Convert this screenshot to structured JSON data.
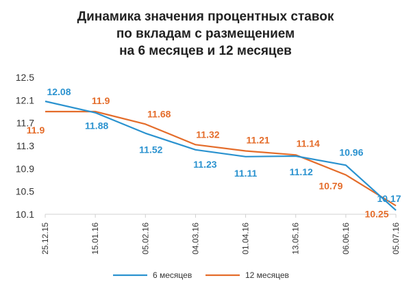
{
  "chart_data": {
    "type": "line",
    "title_lines": [
      "Динамика значения процентных ставок",
      "по вкладам с размещением",
      "на 6 месяцев и 12 месяцев"
    ],
    "categories": [
      "25.12.15",
      "15.01.16",
      "05.02.16",
      "04.03.16",
      "01.04.16",
      "13.05.16",
      "06.06.16",
      "05.07.16"
    ],
    "yticks": [
      "12.5",
      "12.1",
      "11.7",
      "11.3",
      "10.9",
      "10.5",
      "10.1"
    ],
    "ylim": [
      10.1,
      12.5
    ],
    "grid": false,
    "legend_position": "bottom",
    "series": [
      {
        "name": "6 месяцев",
        "color": "#2a92cf",
        "values": [
          12.08,
          11.88,
          11.52,
          11.23,
          11.11,
          11.12,
          10.96,
          10.17
        ],
        "labels": [
          "12.08",
          "11.88",
          "11.52",
          "11.23",
          "11.11",
          "11.12",
          "10.96",
          "10.17"
        ]
      },
      {
        "name": "12 месяцев",
        "color": "#e46c2a",
        "values": [
          11.9,
          11.9,
          11.68,
          11.32,
          11.21,
          11.14,
          10.79,
          10.25
        ],
        "labels": [
          "11.9",
          "11.9",
          "11.68",
          "11.32",
          "11.21",
          "11.14",
          "10.79",
          "10.25"
        ]
      }
    ]
  }
}
